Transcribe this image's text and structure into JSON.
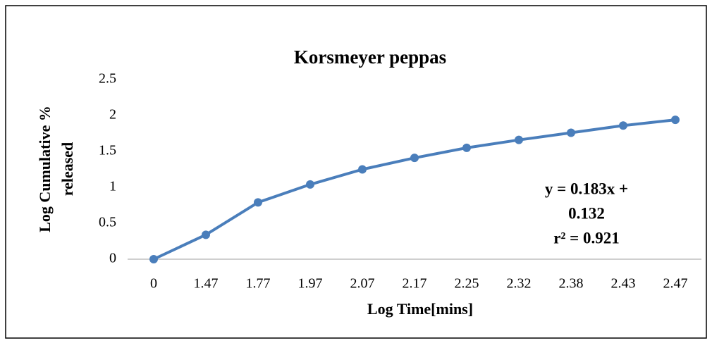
{
  "chart_data": {
    "type": "line",
    "title": "Korsmeyer peppas",
    "x_label": "Log Time[mins]",
    "y_label": [
      "Log Cumulative %",
      "released"
    ],
    "categories": [
      "0",
      "1.47",
      "1.77",
      "1.97",
      "2.07",
      "2.17",
      "2.25",
      "2.32",
      "2.38",
      "2.43",
      "2.47"
    ],
    "values": [
      0,
      0.34,
      0.79,
      1.04,
      1.25,
      1.41,
      1.55,
      1.66,
      1.76,
      1.86,
      1.94
    ],
    "color": "#4a7ebb",
    "ylim": [
      0,
      2.5
    ],
    "yticks": [
      0,
      0.5,
      1,
      1.5,
      2,
      2.5
    ],
    "grid": false,
    "annotation": [
      "y = 0.183x +",
      "0.132",
      "r² = 0.921"
    ]
  }
}
